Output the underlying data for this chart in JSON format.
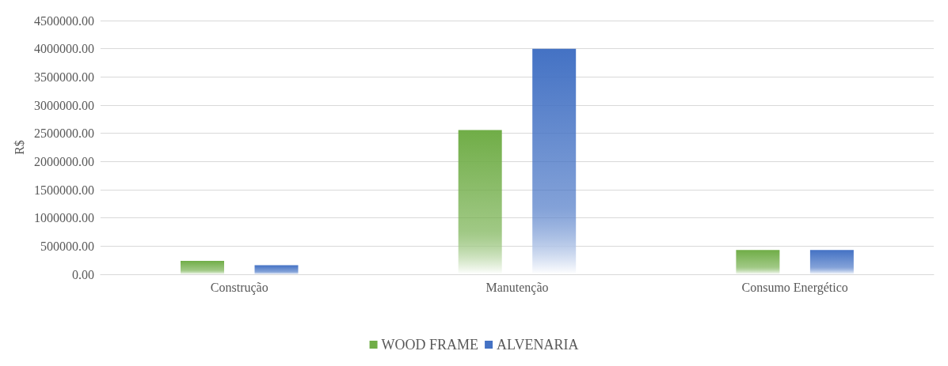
{
  "chart_data": {
    "type": "bar",
    "ylabel": "R$",
    "categories": [
      "Construção",
      "Manutenção",
      "Consumo Energético"
    ],
    "series": [
      {
        "name": "WOOD FRAME",
        "color": "#70ad47",
        "values": [
          240000,
          2560000,
          430000
        ]
      },
      {
        "name": "ALVENARIA",
        "color": "#4472c4",
        "values": [
          160000,
          4000000,
          430000
        ]
      }
    ],
    "ylim": [
      0,
      4500000
    ],
    "yticks": [
      {
        "value": 0,
        "label": "0.00"
      },
      {
        "value": 500000,
        "label": "500000.00"
      },
      {
        "value": 1000000,
        "label": "1000000.00"
      },
      {
        "value": 1500000,
        "label": "1500000.00"
      },
      {
        "value": 2000000,
        "label": "2000000.00"
      },
      {
        "value": 2500000,
        "label": "2500000.00"
      },
      {
        "value": 3000000,
        "label": "3000000.00"
      },
      {
        "value": 3500000,
        "label": "3500000.00"
      },
      {
        "value": 4000000,
        "label": "4000000.00"
      },
      {
        "value": 4500000,
        "label": "4500000.00"
      }
    ],
    "grid": "y",
    "legend": "bottom"
  }
}
